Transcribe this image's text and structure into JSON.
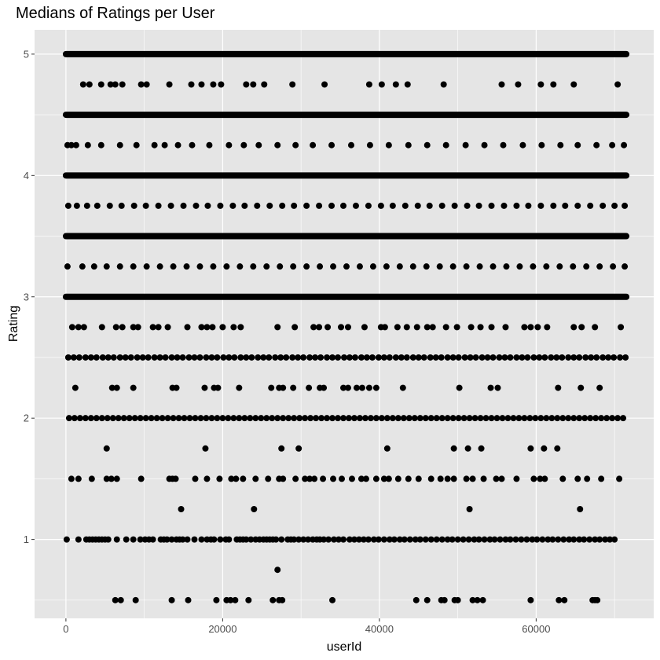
{
  "chart_data": {
    "type": "scatter",
    "title": "Medians of Ratings per User",
    "xlabel": "userId",
    "ylabel": "Rating",
    "xlim": [
      -4000,
      75000
    ],
    "ylim": [
      0.35,
      5.2
    ],
    "x_ticks": [
      0,
      20000,
      40000,
      60000
    ],
    "x_tick_labels": [
      "0",
      "20000",
      "40000",
      "60000"
    ],
    "y_ticks": [
      1,
      2,
      3,
      4,
      5
    ],
    "y_tick_labels": [
      "1",
      "2",
      "3",
      "4",
      "5"
    ],
    "grid": true,
    "legend": "none",
    "colors": {
      "panel": "#e5e5e5",
      "grid": "#ffffff",
      "point": "#000000"
    },
    "dense_levels": [
      {
        "y": 5.0,
        "x_range": [
          0,
          71500
        ]
      },
      {
        "y": 4.5,
        "x_range": [
          0,
          71500
        ]
      },
      {
        "y": 4.0,
        "x_range": [
          0,
          71500
        ]
      },
      {
        "y": 3.5,
        "x_range": [
          0,
          71500
        ]
      },
      {
        "y": 3.0,
        "x_range": [
          0,
          71500
        ]
      }
    ],
    "series": [
      {
        "y": 4.75,
        "x": [
          2200,
          3000,
          4500,
          5700,
          6300,
          7200,
          9600,
          10300,
          13200,
          16000,
          17300,
          18800,
          19800,
          23000,
          23900,
          25300,
          28900,
          33000,
          38700,
          40300,
          42100,
          43600,
          48200,
          55600,
          57700,
          60600,
          62200,
          64800,
          70400
        ]
      },
      {
        "y": 4.25,
        "x": [
          200,
          700,
          1300,
          2800,
          4500,
          6900,
          9000,
          11300,
          12600,
          14300,
          16100,
          18300,
          20800,
          22700,
          24600,
          27000,
          29300,
          31500,
          33900,
          36400,
          38800,
          41200,
          43700,
          46100,
          48500,
          51000,
          53400,
          55800,
          58300,
          60700,
          63100,
          65300,
          67700,
          69700,
          71200
        ]
      },
      {
        "y": 3.75,
        "x": [
          300,
          1400,
          2700,
          4000,
          5600,
          7100,
          8700,
          10200,
          11800,
          13400,
          15000,
          16600,
          18100,
          19700,
          21300,
          22800,
          24400,
          26000,
          27600,
          29100,
          30700,
          32300,
          33900,
          35400,
          37000,
          38600,
          40200,
          41700,
          43300,
          44900,
          46400,
          48000,
          49600,
          51200,
          52700,
          54300,
          55900,
          57500,
          59000,
          60600,
          62200,
          63700,
          65300,
          66900,
          68500,
          70000,
          71300
        ]
      },
      {
        "y": 3.25,
        "x": [
          200,
          2100,
          3600,
          5200,
          6900,
          8600,
          10300,
          12000,
          13700,
          15400,
          17100,
          18800,
          20500,
          22200,
          23900,
          25600,
          27300,
          29000,
          30700,
          32400,
          34100,
          35800,
          37500,
          39200,
          40900,
          42600,
          44300,
          46000,
          47700,
          49400,
          51100,
          52800,
          54500,
          56200,
          57900,
          59600,
          61300,
          63000,
          64700,
          66400,
          68100,
          69800,
          71300
        ]
      },
      {
        "y": 2.75,
        "x": [
          800,
          1600,
          2300,
          4600,
          6400,
          7200,
          8600,
          9200,
          11100,
          11800,
          13000,
          15500,
          17300,
          18000,
          18700,
          20000,
          21400,
          22300,
          27000,
          29200,
          31600,
          32300,
          33400,
          35100,
          36000,
          38100,
          40200,
          40700,
          42300,
          43500,
          44800,
          46100,
          46800,
          48500,
          49900,
          51700,
          52900,
          54300,
          56100,
          58500,
          59300,
          60200,
          61400,
          64800,
          65800,
          67500,
          70800
        ]
      },
      {
        "y": 2.5,
        "x": [
          300,
          1000,
          1700,
          2500,
          3200,
          3900,
          4700,
          5400,
          6100,
          6900,
          7600,
          8300,
          9100,
          9800,
          10500,
          11300,
          12000,
          12700,
          13500,
          14200,
          14900,
          15700,
          16400,
          17100,
          17900,
          18600,
          19300,
          20100,
          20800,
          21500,
          22300,
          23000,
          23700,
          24500,
          25200,
          25900,
          26700,
          27400,
          28100,
          28900,
          29600,
          30300,
          31100,
          31800,
          32500,
          33300,
          34000,
          34700,
          35500,
          36200,
          36900,
          37700,
          38400,
          39100,
          39900,
          40600,
          41300,
          42100,
          42800,
          43500,
          44300,
          45000,
          45700,
          46500,
          47200,
          47900,
          48700,
          49400,
          50100,
          50900,
          51600,
          52300,
          53100,
          53800,
          54500,
          55300,
          56000,
          56700,
          57500,
          58200,
          58900,
          59700,
          60400,
          61100,
          61900,
          62600,
          63300,
          64100,
          64800,
          65500,
          66300,
          67000,
          67700,
          68500,
          69200,
          69900,
          70700,
          71400
        ]
      },
      {
        "y": 2.25,
        "x": [
          1200,
          5900,
          6500,
          8600,
          13600,
          14100,
          17700,
          18900,
          19400,
          22100,
          26200,
          27200,
          27700,
          29000,
          31000,
          32400,
          32900,
          35400,
          36000,
          37100,
          37800,
          38700,
          39600,
          43000,
          50200,
          54200,
          55100,
          62800,
          65700,
          68100
        ]
      },
      {
        "y": 2.0,
        "x": [
          400,
          1100,
          1800,
          2500,
          3200,
          3900,
          4600,
          5300,
          6000,
          6700,
          7400,
          8100,
          8800,
          9500,
          10200,
          10900,
          11600,
          12300,
          13000,
          13700,
          14400,
          15100,
          15800,
          16500,
          17200,
          17900,
          18600,
          19300,
          20000,
          20700,
          21400,
          22100,
          22800,
          23500,
          24200,
          24900,
          25600,
          26300,
          27000,
          27700,
          28400,
          29100,
          29800,
          30500,
          31200,
          31900,
          32600,
          33300,
          34000,
          34700,
          35400,
          36100,
          36800,
          37500,
          38200,
          38900,
          39600,
          40300,
          41000,
          41700,
          42400,
          43100,
          43800,
          44500,
          45200,
          45900,
          46600,
          47300,
          48000,
          48700,
          49400,
          50100,
          50800,
          51500,
          52200,
          52900,
          53600,
          54300,
          55000,
          55700,
          56400,
          57100,
          57800,
          58500,
          59200,
          59900,
          60600,
          61300,
          62000,
          62700,
          63400,
          64100,
          64800,
          65500,
          66200,
          66900,
          67600,
          68300,
          69000,
          69700,
          70400,
          71100
        ]
      },
      {
        "y": 1.75,
        "x": [
          5200,
          17800,
          27500,
          29700,
          41000,
          49500,
          51300,
          53000,
          59300,
          61000,
          62700
        ]
      },
      {
        "y": 1.5,
        "x": [
          700,
          1600,
          3300,
          5200,
          5800,
          6500,
          9600,
          13200,
          13600,
          14000,
          16500,
          18000,
          19600,
          21100,
          21700,
          22600,
          24200,
          25800,
          27200,
          27700,
          29300,
          30500,
          31100,
          31700,
          32800,
          34100,
          35200,
          36500,
          37700,
          38300,
          39600,
          40600,
          41200,
          42400,
          43700,
          45000,
          46600,
          47800,
          48700,
          49500,
          51100,
          51900,
          53300,
          54900,
          55600,
          57500,
          59700,
          60500,
          61100,
          63400,
          65300,
          66500,
          68300,
          70600
        ]
      },
      {
        "y": 1.25,
        "x": [
          14700,
          24000,
          51500,
          65600
        ]
      },
      {
        "y": 1.0,
        "x": [
          100,
          1600,
          2600,
          3000,
          3400,
          3800,
          4200,
          4600,
          5000,
          5400,
          6500,
          7700,
          8600,
          9500,
          10100,
          10600,
          11100,
          12100,
          12500,
          12900,
          13500,
          14100,
          14500,
          14900,
          15500,
          16400,
          17300,
          18000,
          18500,
          18900,
          19700,
          20400,
          20800,
          21800,
          22200,
          22600,
          23000,
          23600,
          24200,
          24700,
          25200,
          25600,
          26000,
          26400,
          26800,
          27500,
          28300,
          28700,
          29100,
          29700,
          30300,
          30900,
          31500,
          32000,
          32400,
          32900,
          33500,
          34200,
          34800,
          35400,
          36200,
          36800,
          37400,
          38000,
          38600,
          39300,
          39900,
          40600,
          41300,
          41900,
          42600,
          43200,
          43900,
          44600,
          45200,
          45900,
          46600,
          47300,
          48000,
          48700,
          49300,
          50000,
          50700,
          51400,
          52100,
          52700,
          53400,
          54100,
          54700,
          55400,
          56100,
          56700,
          57400,
          58100,
          58800,
          59500,
          60100,
          60800,
          61500,
          62100,
          62800,
          63500,
          64200,
          64800,
          65500,
          66100,
          66800,
          67500,
          68100,
          68800,
          69400,
          70000
        ]
      },
      {
        "y": 0.75,
        "x": [
          27000
        ]
      },
      {
        "y": 0.5,
        "x": [
          6300,
          7000,
          8900,
          13500,
          15600,
          19200,
          20500,
          21000,
          21600,
          23300,
          26400,
          27200,
          27600,
          34000,
          44700,
          46100,
          47900,
          48300,
          49600,
          50000,
          51900,
          52500,
          53200,
          59300,
          62900,
          63600,
          67200,
          67500,
          67800
        ]
      }
    ]
  }
}
